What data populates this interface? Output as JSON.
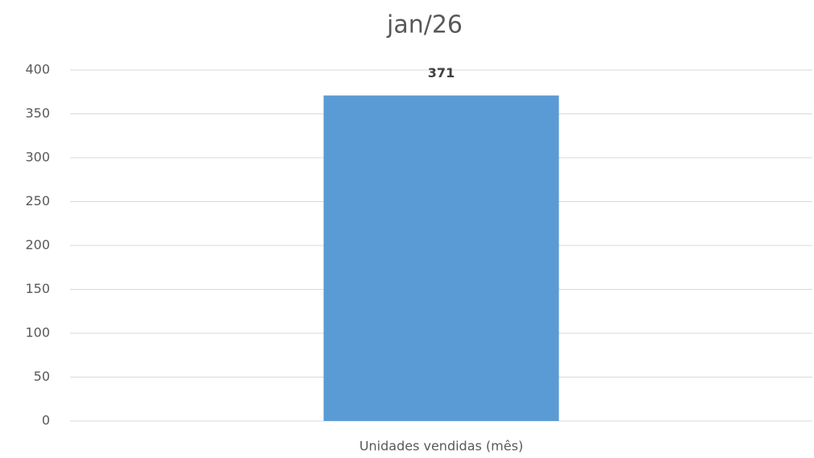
{
  "chart_data": {
    "type": "bar",
    "title": "jan/26",
    "categories": [
      "Unidades vendidas (mês)"
    ],
    "values": [
      371
    ],
    "color": "#5b9bd5",
    "ylim": [
      0,
      400
    ],
    "yticks": [
      0,
      50,
      100,
      150,
      200,
      250,
      300,
      350,
      400
    ],
    "grid": true
  }
}
